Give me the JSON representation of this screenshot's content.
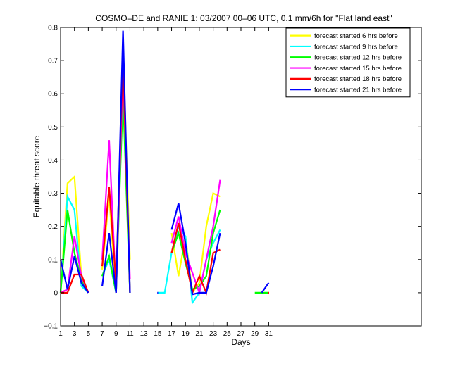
{
  "chart_data": {
    "type": "line",
    "title": "COSMO–DE and RANIE 1: 03/2007 00–06 UTC, 0.1 mm/6h for \"Flat land east\"",
    "xlabel": "Days",
    "ylabel": "Equitable threat score",
    "xlim": [
      1,
      53
    ],
    "ylim": [
      -0.1,
      0.8
    ],
    "xticks": [
      1,
      3,
      5,
      7,
      9,
      11,
      13,
      15,
      17,
      19,
      21,
      23,
      25,
      27,
      29,
      31
    ],
    "xtick_labels": [
      "1",
      "3",
      "5",
      "7",
      "9",
      "11",
      "13",
      "15",
      "17",
      "19",
      "21",
      "23",
      "25",
      "27",
      "29",
      "31"
    ],
    "yticks": [
      -0.1,
      0,
      0.1,
      0.2,
      0.3,
      0.4,
      0.5,
      0.6,
      0.7,
      0.8
    ],
    "ytick_labels": [
      "−0.1",
      "0",
      "0.1",
      "0.2",
      "0.3",
      "0.4",
      "0.5",
      "0.6",
      "0.7",
      "0.8"
    ],
    "grid": false,
    "legend_position": "top-right",
    "x": [
      1,
      2,
      3,
      4,
      5,
      6,
      7,
      8,
      9,
      10,
      11,
      12,
      13,
      14,
      15,
      16,
      17,
      18,
      19,
      20,
      21,
      22,
      23,
      24,
      25,
      26,
      27,
      28,
      29,
      30,
      31
    ],
    "series": [
      {
        "name": "forecast started 6 hrs before",
        "color": "#ffff00",
        "values": [
          0.0,
          0.33,
          0.35,
          0.05,
          0.0,
          null,
          0.07,
          0.29,
          0.0,
          0.73,
          0.1,
          null,
          null,
          null,
          null,
          null,
          0.18,
          0.05,
          0.17,
          0.0,
          0.03,
          0.2,
          0.3,
          0.29,
          null,
          null,
          null,
          null,
          null,
          null,
          null
        ]
      },
      {
        "name": "forecast started 9 hrs before",
        "color": "#00ffff",
        "values": [
          0.0,
          0.29,
          0.25,
          0.02,
          0.0,
          null,
          0.05,
          0.1,
          0.0,
          0.7,
          0.0,
          null,
          null,
          null,
          0.0,
          0.0,
          0.12,
          0.2,
          0.17,
          -0.03,
          0.0,
          0.1,
          0.15,
          0.19,
          null,
          null,
          null,
          null,
          null,
          null,
          null
        ]
      },
      {
        "name": "forecast started 12 hrs before",
        "color": "#00ff00",
        "values": [
          0.0,
          0.25,
          0.12,
          0.04,
          0.0,
          null,
          0.05,
          0.11,
          0.0,
          0.6,
          0.0,
          null,
          null,
          null,
          null,
          null,
          0.12,
          0.18,
          0.09,
          0.01,
          0.02,
          0.05,
          0.18,
          0.25,
          null,
          null,
          null,
          null,
          0.0,
          0.0,
          0.0
        ]
      },
      {
        "name": "forecast started 15 hrs before",
        "color": "#ff00ff",
        "values": [
          0.0,
          0.01,
          0.17,
          0.05,
          0.0,
          null,
          0.1,
          0.46,
          0.0,
          0.68,
          0.04,
          null,
          null,
          null,
          null,
          null,
          0.15,
          0.23,
          0.12,
          0.06,
          0.0,
          0.1,
          0.2,
          0.34,
          null,
          null,
          null,
          null,
          null,
          null,
          null
        ]
      },
      {
        "name": "forecast started 18 hrs before",
        "color": "#ff0000",
        "values": [
          0.0,
          0.0,
          0.055,
          0.055,
          0.0,
          null,
          0.08,
          0.32,
          0.03,
          0.72,
          0.0,
          null,
          null,
          null,
          null,
          null,
          0.12,
          0.21,
          0.1,
          0.0,
          0.05,
          0.0,
          0.12,
          0.13,
          null,
          null,
          null,
          null,
          null,
          null,
          0.0
        ]
      },
      {
        "name": "forecast started 21 hrs before",
        "color": "#0000ff",
        "values": [
          0.1,
          0.01,
          0.11,
          0.03,
          0.0,
          null,
          0.02,
          0.18,
          0.0,
          0.79,
          0.0,
          null,
          null,
          null,
          0.0,
          null,
          0.19,
          0.27,
          0.15,
          -0.005,
          0.0,
          0.0,
          0.08,
          0.18,
          null,
          null,
          null,
          null,
          null,
          0.0,
          0.03
        ]
      }
    ]
  }
}
